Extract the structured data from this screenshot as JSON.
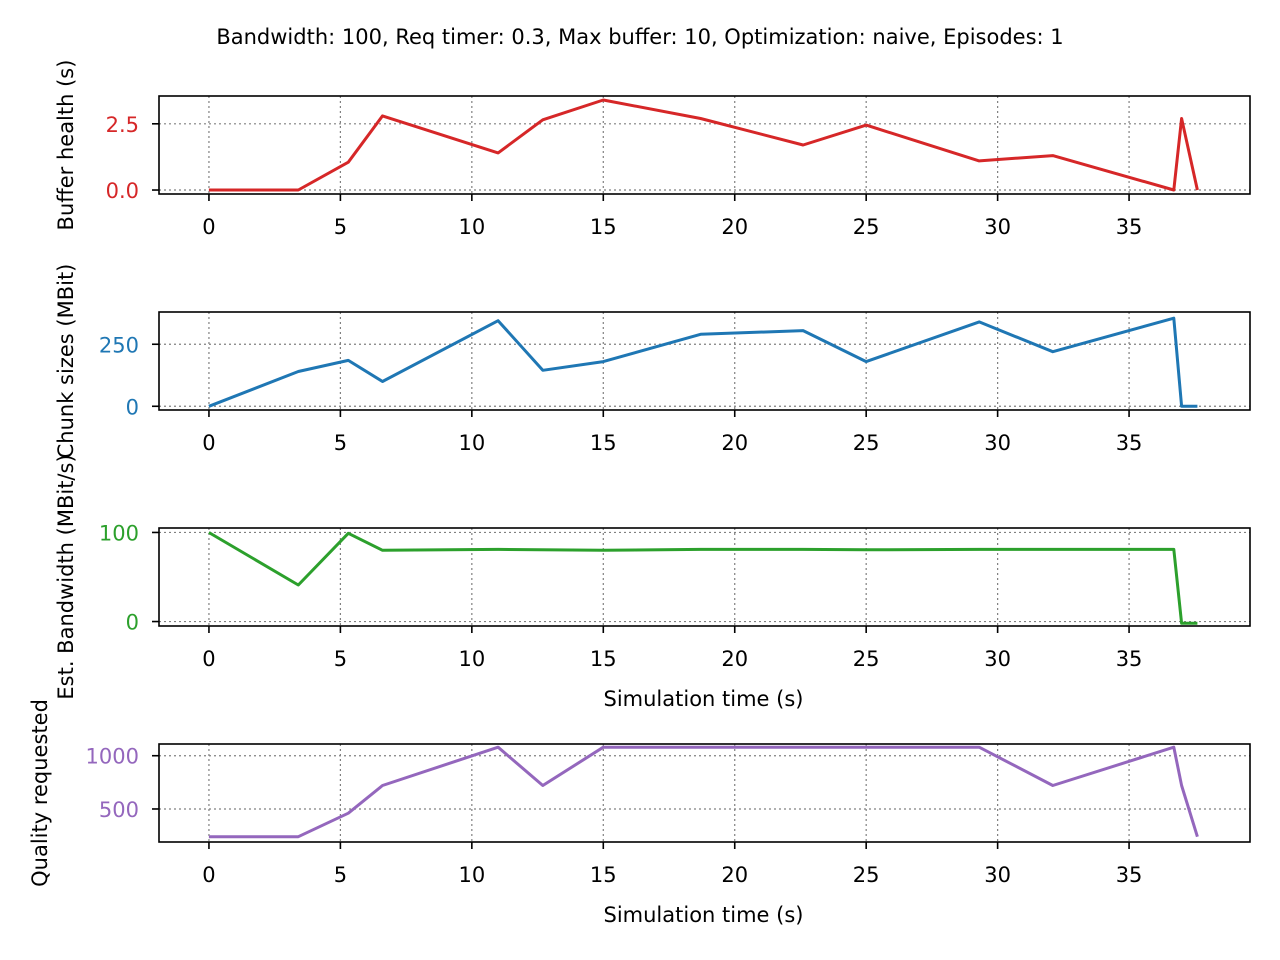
{
  "figure": {
    "title": "Bandwidth: 100, Req timer: 0.3, Max buffer: 10, Optimization: naive, Episodes: 1"
  },
  "chart_data": [
    {
      "type": "line",
      "ylabel": "Buffer health (s)",
      "xlabel": "",
      "color": "#d62728",
      "xlim": [
        -1.9,
        39.6
      ],
      "ylim": [
        -0.15,
        3.55
      ],
      "xticks": [
        0,
        5,
        10,
        15,
        20,
        25,
        30,
        35
      ],
      "yticks": [
        0.0,
        2.5
      ],
      "ytick_labels": [
        "0.0",
        "2.5"
      ],
      "grid": true,
      "series": [
        {
          "x": [
            0,
            3.4,
            5.3,
            6.6,
            11.0,
            12.7,
            15.0,
            18.7,
            22.6,
            25.0,
            29.3,
            32.1,
            36.7,
            37.0,
            37.6
          ],
          "y": [
            0.0,
            0.0,
            1.05,
            2.8,
            1.4,
            2.65,
            3.4,
            2.7,
            1.7,
            2.45,
            1.1,
            1.3,
            0.0,
            2.7,
            0.0
          ]
        }
      ]
    },
    {
      "type": "line",
      "ylabel": "Chunk sizes (MBit)",
      "xlabel": "",
      "color": "#1f77b4",
      "xlim": [
        -1.9,
        39.6
      ],
      "ylim": [
        -15,
        380
      ],
      "xticks": [
        0,
        5,
        10,
        15,
        20,
        25,
        30,
        35
      ],
      "yticks": [
        0,
        250
      ],
      "ytick_labels": [
        "0",
        "250"
      ],
      "grid": true,
      "series": [
        {
          "x": [
            0,
            3.4,
            5.3,
            6.6,
            11.0,
            12.7,
            15.0,
            18.7,
            22.6,
            25.0,
            29.3,
            32.1,
            36.7,
            37.0,
            37.6
          ],
          "y": [
            0,
            140,
            185,
            100,
            345,
            145,
            180,
            290,
            305,
            180,
            340,
            220,
            355,
            0,
            0
          ]
        }
      ]
    },
    {
      "type": "line",
      "ylabel": "Est. Bandwidth (MBit/s)",
      "xlabel": "Simulation time (s)",
      "color": "#2ca02c",
      "xlim": [
        -1.9,
        39.6
      ],
      "ylim": [
        -5,
        105
      ],
      "xticks": [
        0,
        5,
        10,
        15,
        20,
        25,
        30,
        35
      ],
      "yticks": [
        0,
        100
      ],
      "ytick_labels": [
        "0",
        "100"
      ],
      "grid": true,
      "series": [
        {
          "x": [
            0,
            3.4,
            5.3,
            6.6,
            11.0,
            15.0,
            18.7,
            22.6,
            25.0,
            29.3,
            32.1,
            36.7,
            37.0,
            37.6
          ],
          "y": [
            100,
            41,
            99,
            80,
            81,
            80,
            81,
            81,
            80.5,
            81,
            81,
            81,
            -2,
            -2
          ]
        }
      ]
    },
    {
      "type": "line",
      "ylabel": "Quality requested",
      "xlabel": "Simulation time (s)",
      "color": "#9467bd",
      "xlim": [
        -1.9,
        39.6
      ],
      "ylim": [
        190,
        1110
      ],
      "xticks": [
        0,
        5,
        10,
        15,
        20,
        25,
        30,
        35
      ],
      "yticks": [
        500,
        1000
      ],
      "ytick_labels": [
        "500",
        "1000"
      ],
      "grid": true,
      "series": [
        {
          "x": [
            0,
            3.4,
            5.3,
            6.6,
            11.0,
            12.7,
            15.0,
            29.3,
            32.1,
            36.7,
            37.0,
            37.6
          ],
          "y": [
            240,
            240,
            460,
            720,
            1080,
            720,
            1080,
            1080,
            720,
            1080,
            720,
            240
          ]
        }
      ]
    }
  ]
}
